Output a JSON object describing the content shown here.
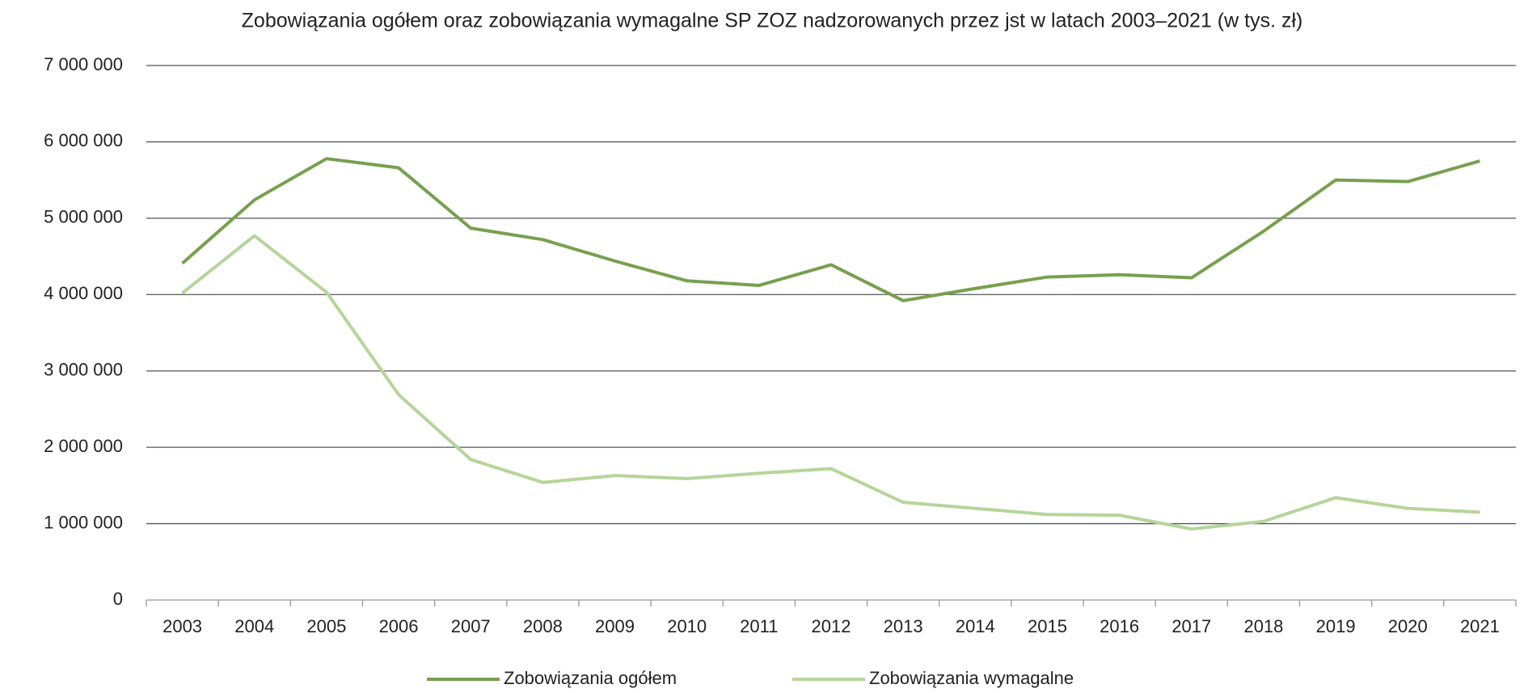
{
  "chart_data": {
    "type": "line",
    "title": "Zobowiązania ogółem oraz zobowiązania wymagalne SP ZOZ nadzorowanych przez jst w latach 2003–2021 (w tys. zł)",
    "categories": [
      "2003",
      "2004",
      "2005",
      "2006",
      "2007",
      "2008",
      "2009",
      "2010",
      "2011",
      "2012",
      "2013",
      "2014",
      "2015",
      "2016",
      "2017",
      "2018",
      "2019",
      "2020",
      "2021"
    ],
    "series": [
      {
        "name": "Zobowiązania ogółem",
        "color": "#77a04f",
        "values": [
          4410000,
          5240000,
          5780000,
          5660000,
          4870000,
          4720000,
          4440000,
          4180000,
          4120000,
          4390000,
          3920000,
          4080000,
          4230000,
          4260000,
          4220000,
          4830000,
          5500000,
          5480000,
          5750000
        ]
      },
      {
        "name": "Zobowiązania wymagalne",
        "color": "#b5d59a",
        "values": [
          4020000,
          4770000,
          4030000,
          2690000,
          1840000,
          1540000,
          1630000,
          1590000,
          1660000,
          1720000,
          1280000,
          1200000,
          1120000,
          1110000,
          930000,
          1030000,
          1340000,
          1200000,
          1150000
        ]
      }
    ],
    "ylim": [
      0,
      7000000
    ],
    "yticks": [
      0,
      {
        "value": 1000000,
        "label": "1 000 000"
      },
      {
        "value": 2000000,
        "label": "2 000 000"
      },
      {
        "value": 3000000,
        "label": "3 000 000"
      },
      {
        "value": 4000000,
        "label": "4 000 000"
      },
      {
        "value": 5000000,
        "label": "5 000 000"
      },
      {
        "value": 6000000,
        "label": "6 000 000"
      },
      {
        "value": 7000000,
        "label": "7 000 000"
      }
    ],
    "grid": true,
    "legend": "bottom"
  }
}
